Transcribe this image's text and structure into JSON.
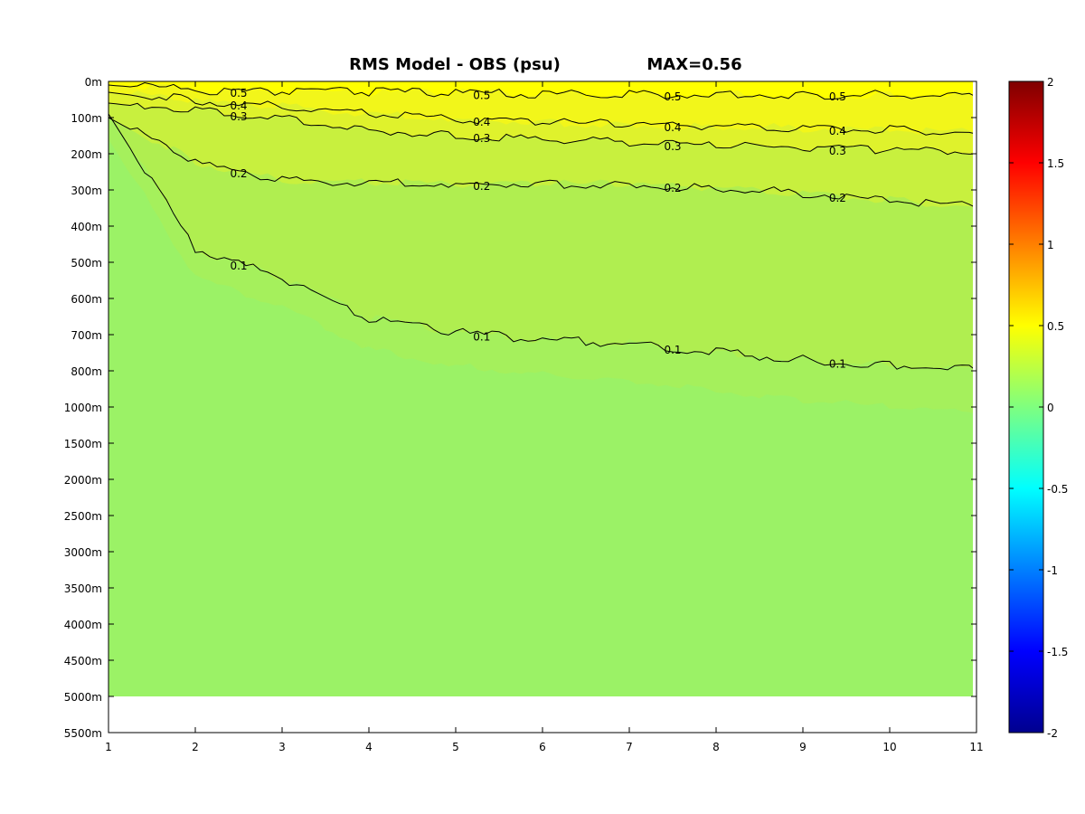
{
  "chart_data": {
    "type": "heatmap",
    "title": "RMS Model - OBS (psu)",
    "max_label": "MAX=0.56",
    "xlim": [
      1,
      11
    ],
    "x_ticks": [
      "1",
      "2",
      "3",
      "4",
      "5",
      "6",
      "7",
      "8",
      "9",
      "10",
      "11"
    ],
    "y_ticks": [
      "0m",
      "100m",
      "200m",
      "300m",
      "400m",
      "500m",
      "600m",
      "700m",
      "800m",
      "1000m",
      "1500m",
      "2000m",
      "2500m",
      "3000m",
      "3500m",
      "4000m",
      "4500m",
      "5000m",
      "5500m"
    ],
    "y_axis_direction": "depth increases downward",
    "data_depth_bottom": "5000m",
    "colorbar": {
      "colormap": "jet",
      "range": [
        -2,
        2
      ],
      "ticks": [
        "2",
        "1.5",
        "1",
        "0.5",
        "0",
        "-0.5",
        "-1",
        "-1.5",
        "-2"
      ]
    },
    "field_bands": [
      {
        "range": [
          0.5,
          0.56
        ],
        "color": "#ffff00"
      },
      {
        "range": [
          0.4,
          0.5
        ],
        "color": "#f2f61a"
      },
      {
        "range": [
          0.3,
          0.4
        ],
        "color": "#dff22c"
      },
      {
        "range": [
          0.2,
          0.3
        ],
        "color": "#c8f03e"
      },
      {
        "range": [
          0.1,
          0.2
        ],
        "color": "#b0ee50"
      },
      {
        "range": [
          0.0,
          0.1
        ],
        "color": "#9bf266"
      }
    ],
    "contours": [
      {
        "level": 0.5,
        "label": "0.5",
        "depth_index": [
          0.1,
          0.3,
          0.35,
          0.35,
          0.38,
          0.42,
          0.42,
          0.42,
          0.43,
          0.43,
          0.43
        ]
      },
      {
        "level": 0.4,
        "label": "0.4",
        "depth_index": [
          0.3,
          0.6,
          0.75,
          0.95,
          1.1,
          1.2,
          1.25,
          1.3,
          1.35,
          1.4,
          1.45
        ]
      },
      {
        "level": 0.3,
        "label": "0.3",
        "depth_index": [
          0.6,
          0.85,
          1.1,
          1.4,
          1.55,
          1.65,
          1.75,
          1.85,
          1.9,
          1.95,
          2.0
        ]
      },
      {
        "level": 0.2,
        "label": "0.2",
        "depth_index": [
          1.0,
          2.3,
          2.8,
          2.85,
          2.9,
          2.9,
          2.9,
          3.0,
          3.15,
          3.35,
          3.5
        ]
      },
      {
        "level": 0.1,
        "label": "0.1",
        "depth_index": [
          0.9,
          4.7,
          5.5,
          6.6,
          7.0,
          7.2,
          7.3,
          7.55,
          7.75,
          7.9,
          8.0
        ]
      }
    ]
  }
}
